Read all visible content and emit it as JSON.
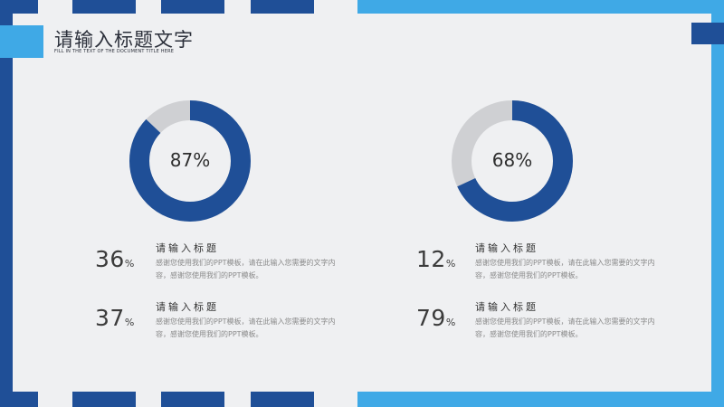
{
  "header": {
    "title": "请输入标题文字",
    "subtitle": "FILL IN THE TEXT OF THE DOCUMENT TITLE HERE"
  },
  "donuts": [
    {
      "label": "87%",
      "value": 0.87
    },
    {
      "label": "68%",
      "value": 0.68
    }
  ],
  "stats": [
    {
      "number": "36",
      "unit": "%",
      "title": "请输入标题",
      "body": "感谢您使用我们的PPT模板，请在此输入您需要的文字内容，感谢您使用我们的PPT模板。"
    },
    {
      "number": "37",
      "unit": "%",
      "title": "请输入标题",
      "body": "感谢您使用我们的PPT模板，请在此输入您需要的文字内容，感谢您使用我们的PPT模板。"
    },
    {
      "number": "12",
      "unit": "%",
      "title": "请输入标题",
      "body": "感谢您使用我们的PPT模板，请在此输入您需要的文字内容，感谢您使用我们的PPT模板。"
    },
    {
      "number": "79",
      "unit": "%",
      "title": "请输入标题",
      "body": "感谢您使用我们的PPT模板，请在此输入您需要的文字内容，感谢您使用我们的PPT模板。"
    }
  ],
  "colors": {
    "accent": "#1f4f97",
    "light_accent": "#3fa9e6",
    "track": "#cfd0d3",
    "background": "#eff0f2"
  }
}
